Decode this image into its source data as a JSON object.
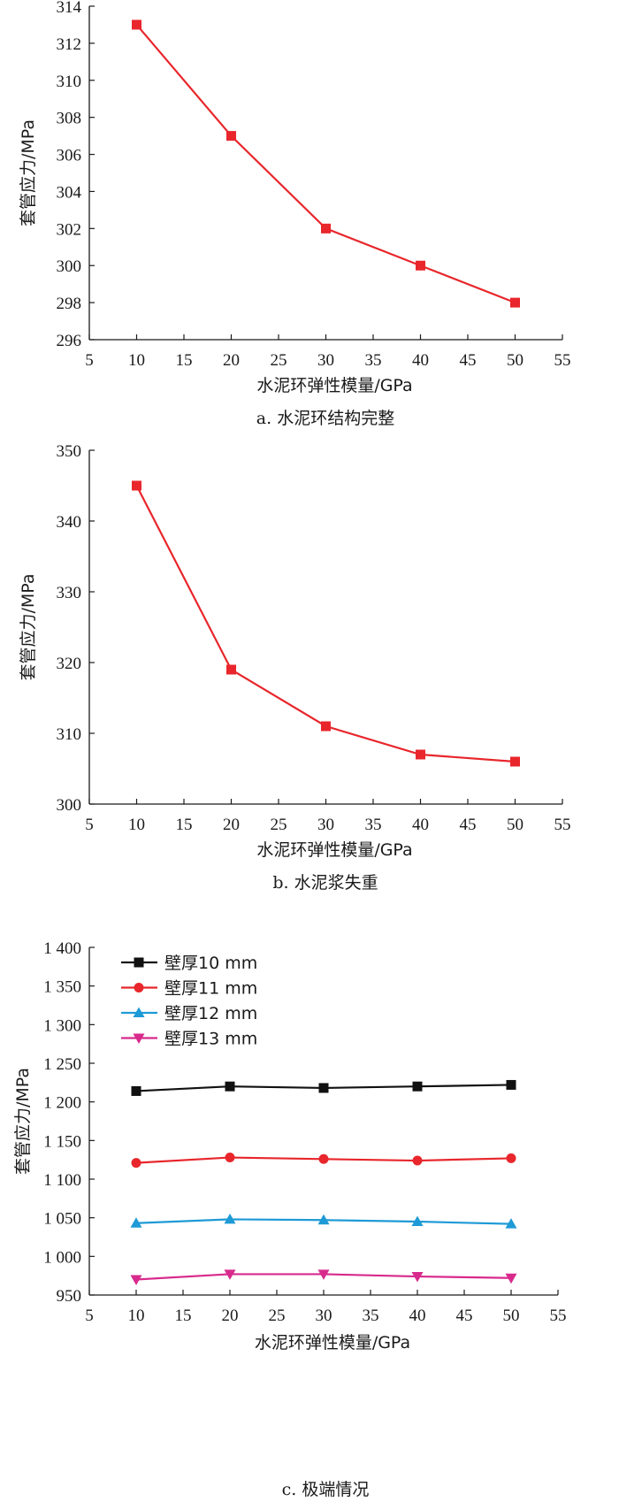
{
  "chart_data": [
    {
      "type": "line",
      "caption": "a. 水泥环结构完整",
      "xlabel": "水泥环弹性模量/GPa",
      "ylabel": "套管应力/MPa",
      "xlim": [
        5,
        55
      ],
      "ylim": [
        296,
        314
      ],
      "xticks": [
        "5",
        "10",
        "15",
        "20",
        "25",
        "30",
        "35",
        "40",
        "45",
        "50",
        "55"
      ],
      "yticks": [
        "296",
        "298",
        "300",
        "302",
        "304",
        "306",
        "308",
        "310",
        "312",
        "314"
      ],
      "grid": false,
      "series": [
        {
          "color": "#e8262b",
          "marker": "square",
          "x": [
            10,
            20,
            30,
            40,
            50
          ],
          "y": [
            313,
            307,
            302,
            300,
            298
          ]
        }
      ]
    },
    {
      "type": "line",
      "caption": "b. 水泥浆失重",
      "xlabel": "水泥环弹性模量/GPa",
      "ylabel": "套管应力/MPa",
      "xlim": [
        5,
        55
      ],
      "ylim": [
        300,
        350
      ],
      "xticks": [
        "5",
        "10",
        "15",
        "20",
        "25",
        "30",
        "35",
        "40",
        "45",
        "50",
        "55"
      ],
      "yticks": [
        "300",
        "310",
        "320",
        "330",
        "340",
        "350"
      ],
      "grid": false,
      "series": [
        {
          "color": "#e8262b",
          "marker": "square",
          "x": [
            10,
            20,
            30,
            40,
            50
          ],
          "y": [
            345,
            319,
            311,
            307,
            306
          ]
        }
      ]
    },
    {
      "type": "line",
      "caption": "c. 极端情况",
      "xlabel": "水泥环弹性模量/GPa",
      "ylabel": "套管应力/MPa",
      "xlim": [
        5,
        55
      ],
      "ylim": [
        950,
        1400
      ],
      "xticks": [
        "5",
        "10",
        "15",
        "20",
        "25",
        "30",
        "35",
        "40",
        "45",
        "50",
        "55"
      ],
      "yticks": [
        "950",
        "1 000",
        "1 050",
        "1 100",
        "1 150",
        "1 200",
        "1 250",
        "1 300",
        "1 350",
        "1 400"
      ],
      "ytick_values": [
        950,
        1000,
        1050,
        1100,
        1150,
        1200,
        1250,
        1300,
        1350,
        1400
      ],
      "grid": false,
      "legend_position": "top-left",
      "series": [
        {
          "name": "壁厚10 mm",
          "color": "#111111",
          "marker": "square",
          "x": [
            10,
            20,
            30,
            40,
            50
          ],
          "y": [
            1214,
            1220,
            1218,
            1220,
            1222
          ]
        },
        {
          "name": "壁厚11 mm",
          "color": "#e8262b",
          "marker": "circle",
          "x": [
            10,
            20,
            30,
            40,
            50
          ],
          "y": [
            1121,
            1128,
            1126,
            1124,
            1127
          ]
        },
        {
          "name": "壁厚12 mm",
          "color": "#1e9ad6",
          "marker": "triangle-up",
          "x": [
            10,
            20,
            30,
            40,
            50
          ],
          "y": [
            1043,
            1048,
            1047,
            1045,
            1042
          ]
        },
        {
          "name": "壁厚13 mm",
          "color": "#d82a8c",
          "marker": "triangle-down",
          "x": [
            10,
            20,
            30,
            40,
            50
          ],
          "y": [
            970,
            977,
            977,
            974,
            972
          ]
        }
      ]
    }
  ]
}
